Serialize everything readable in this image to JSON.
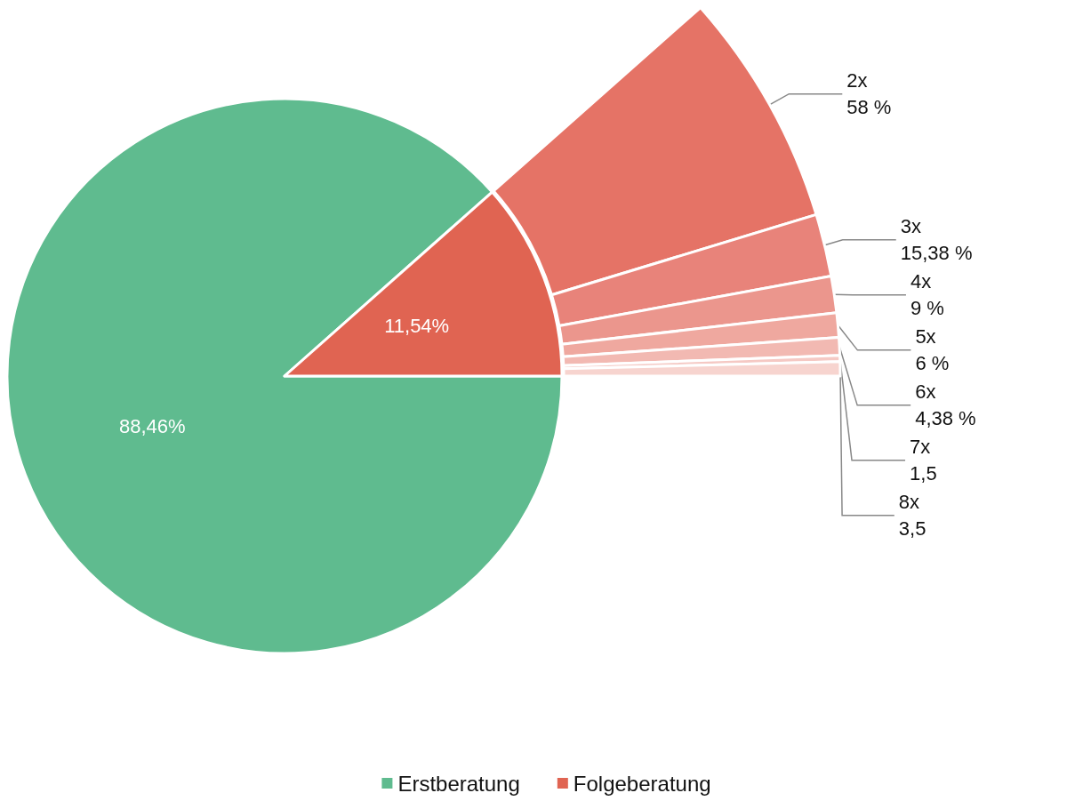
{
  "chart_data": [
    {
      "type": "pie",
      "categories": [
        "Erstberatung",
        "Folgeberatung"
      ],
      "values": [
        88.46,
        11.54
      ],
      "colors": [
        "#5fbb8f",
        "#e06452"
      ],
      "value_labels": [
        "88,46%",
        "11,54%"
      ],
      "legend": "bottom"
    },
    {
      "type": "donut",
      "categories": [
        "2x",
        "3x",
        "4x",
        "5x",
        "6x",
        "7x",
        "8x"
      ],
      "values": [
        58,
        15.38,
        9,
        6,
        4.38,
        1.5,
        3.5
      ],
      "colors": [
        "#e57366",
        "#e8837a",
        "#eb968d",
        "#efa89f",
        "#f2b9b2",
        "#f5c9c4",
        "#f7d4cf"
      ],
      "value_labels": [
        "58 %",
        "15,38 %",
        "9 %",
        "6 %",
        "4,38 %",
        "1,5",
        "3,5"
      ]
    }
  ]
}
